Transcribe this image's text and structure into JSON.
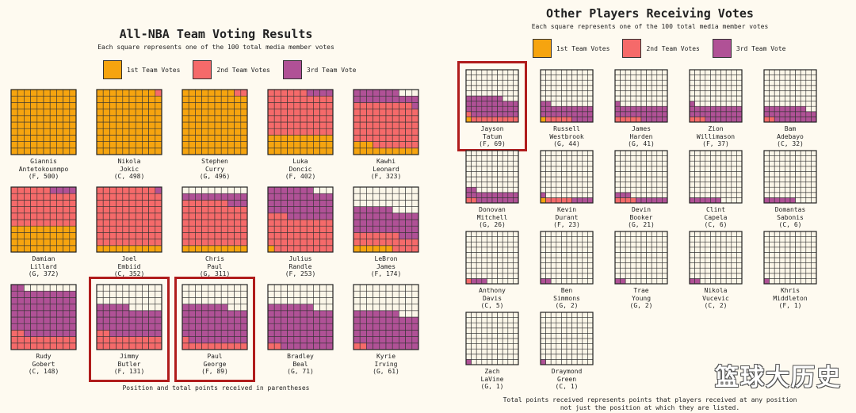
{
  "colors": {
    "first": "#f6a40f",
    "second": "#f56a6a",
    "third": "#b05196",
    "empty": "#fbf6e8",
    "line": "#333333",
    "highlight": "#b01c1c"
  },
  "left": {
    "title": "All-NBA Team Voting Results",
    "subtitle": "Each square represents one of the 100 total media member votes",
    "legend": [
      "1st Team Votes",
      "2nd Team Votes",
      "3rd Team Vote"
    ],
    "footnote": "Position and total points received in parentheses"
  },
  "right": {
    "title": "Other Players Receiving Votes",
    "subtitle": "Each square represents one of the 100 total media member votes",
    "legend": [
      "1st Team Votes",
      "2nd Team Votes",
      "3rd Team Vote"
    ],
    "footnote": "Total points received represents points that players received at any position\nnot just the position at which they are listed."
  },
  "watermark": "篮球大历史",
  "chart_data": [
    {
      "type": "waffle",
      "title": "All-NBA Team Voting Results",
      "grid": [
        10,
        10
      ],
      "series_names": [
        "1st Team Votes",
        "2nd Team Votes",
        "3rd Team Vote"
      ],
      "players": [
        {
          "name": "Giannis\nAntetokounmpo",
          "info": "(F, 500)",
          "first": 100,
          "second": 0,
          "third": 0
        },
        {
          "name": "Nikola\nJokic",
          "info": "(C, 498)",
          "first": 99,
          "second": 1,
          "third": 0
        },
        {
          "name": "Stephen\nCurry",
          "info": "(G, 496)",
          "first": 98,
          "second": 2,
          "third": 0
        },
        {
          "name": "Luka\nDoncic",
          "info": "(F, 402)",
          "first": 30,
          "second": 66,
          "third": 4
        },
        {
          "name": "Kawhi\nLeonard",
          "info": "(F, 323)",
          "first": 13,
          "second": 66,
          "third": 18
        },
        {
          "name": "Damian\nLillard",
          "info": "(G, 372)",
          "first": 40,
          "second": 56,
          "third": 4
        },
        {
          "name": "Joel\nEmbiid",
          "info": "(C, 352)",
          "first": 10,
          "second": 89,
          "third": 1
        },
        {
          "name": "Chris\nPaul",
          "info": "(G, 311)",
          "first": 10,
          "second": 67,
          "third": 13
        },
        {
          "name": "Julius\nRandle",
          "info": "(F, 253)",
          "first": 1,
          "second": 52,
          "third": 44
        },
        {
          "name": "LeBron\nJames",
          "info": "(F, 174)",
          "first": 6,
          "second": 21,
          "third": 39
        },
        {
          "name": "Rudy\nGobert",
          "info": "(C, 148)",
          "first": 0,
          "second": 22,
          "third": 70
        },
        {
          "name": "Jimmy\nButler",
          "info": "(F, 131)",
          "first": 0,
          "second": 22,
          "third": 43,
          "highlight": true
        },
        {
          "name": "Paul\nGeorge",
          "info": "(F, 89)",
          "first": 0,
          "second": 11,
          "third": 56,
          "highlight": true
        },
        {
          "name": "Bradley\nBeal",
          "info": "(G, 71)",
          "first": 0,
          "second": 2,
          "third": 65
        },
        {
          "name": "Kyrie\nIrving",
          "info": "(G, 61)",
          "first": 0,
          "second": 2,
          "third": 55
        }
      ]
    },
    {
      "type": "waffle",
      "title": "Other Players Receiving Votes",
      "grid": [
        10,
        10
      ],
      "series_names": [
        "1st Team Votes",
        "2nd Team Votes",
        "3rd Team Vote"
      ],
      "players": [
        {
          "name": "Jayson\nTatum",
          "info": "(F, 69)",
          "first": 1,
          "second": 10,
          "third": 36,
          "highlight": true
        },
        {
          "name": "Russell\nWestbrook",
          "info": "(G, 44)",
          "first": 1,
          "second": 5,
          "third": 26
        },
        {
          "name": "James\nHarden",
          "info": "(G, 41)",
          "first": 0,
          "second": 5,
          "third": 26
        },
        {
          "name": "Zion\nWillimason",
          "info": "(F, 37)",
          "first": 0,
          "second": 3,
          "third": 28
        },
        {
          "name": "Bam\nAdebayo",
          "info": "(C, 32)",
          "first": 0,
          "second": 2,
          "third": 26
        },
        {
          "name": "Donovan\nMitchell",
          "info": "(G, 26)",
          "first": 0,
          "second": 2,
          "third": 20
        },
        {
          "name": "Kevin\nDurant",
          "info": "(F, 23)",
          "first": 1,
          "second": 5,
          "third": 5
        },
        {
          "name": "Devin\nBooker",
          "info": "(G, 21)",
          "first": 0,
          "second": 4,
          "third": 9
        },
        {
          "name": "Clint\nCapela",
          "info": "(C, 6)",
          "first": 0,
          "second": 0,
          "third": 6
        },
        {
          "name": "Domantas\nSabonis",
          "info": "(C, 6)",
          "first": 0,
          "second": 0,
          "third": 6
        },
        {
          "name": "Anthony\nDavis",
          "info": "(C, 5)",
          "first": 0,
          "second": 1,
          "third": 3
        },
        {
          "name": "Ben\nSimmons",
          "info": "(G, 2)",
          "first": 0,
          "second": 0,
          "third": 2
        },
        {
          "name": "Trae\nYoung",
          "info": "(G, 2)",
          "first": 0,
          "second": 0,
          "third": 2
        },
        {
          "name": "Nikola\nVucevic",
          "info": "(C, 2)",
          "first": 0,
          "second": 0,
          "third": 2
        },
        {
          "name": "Khris\nMiddleton",
          "info": "(F, 1)",
          "first": 0,
          "second": 0,
          "third": 1
        },
        {
          "name": "Zach\nLaVine",
          "info": "(G, 1)",
          "first": 0,
          "second": 0,
          "third": 1
        },
        {
          "name": "Draymond\nGreen",
          "info": "(C, 1)",
          "first": 0,
          "second": 0,
          "third": 1
        }
      ]
    }
  ]
}
